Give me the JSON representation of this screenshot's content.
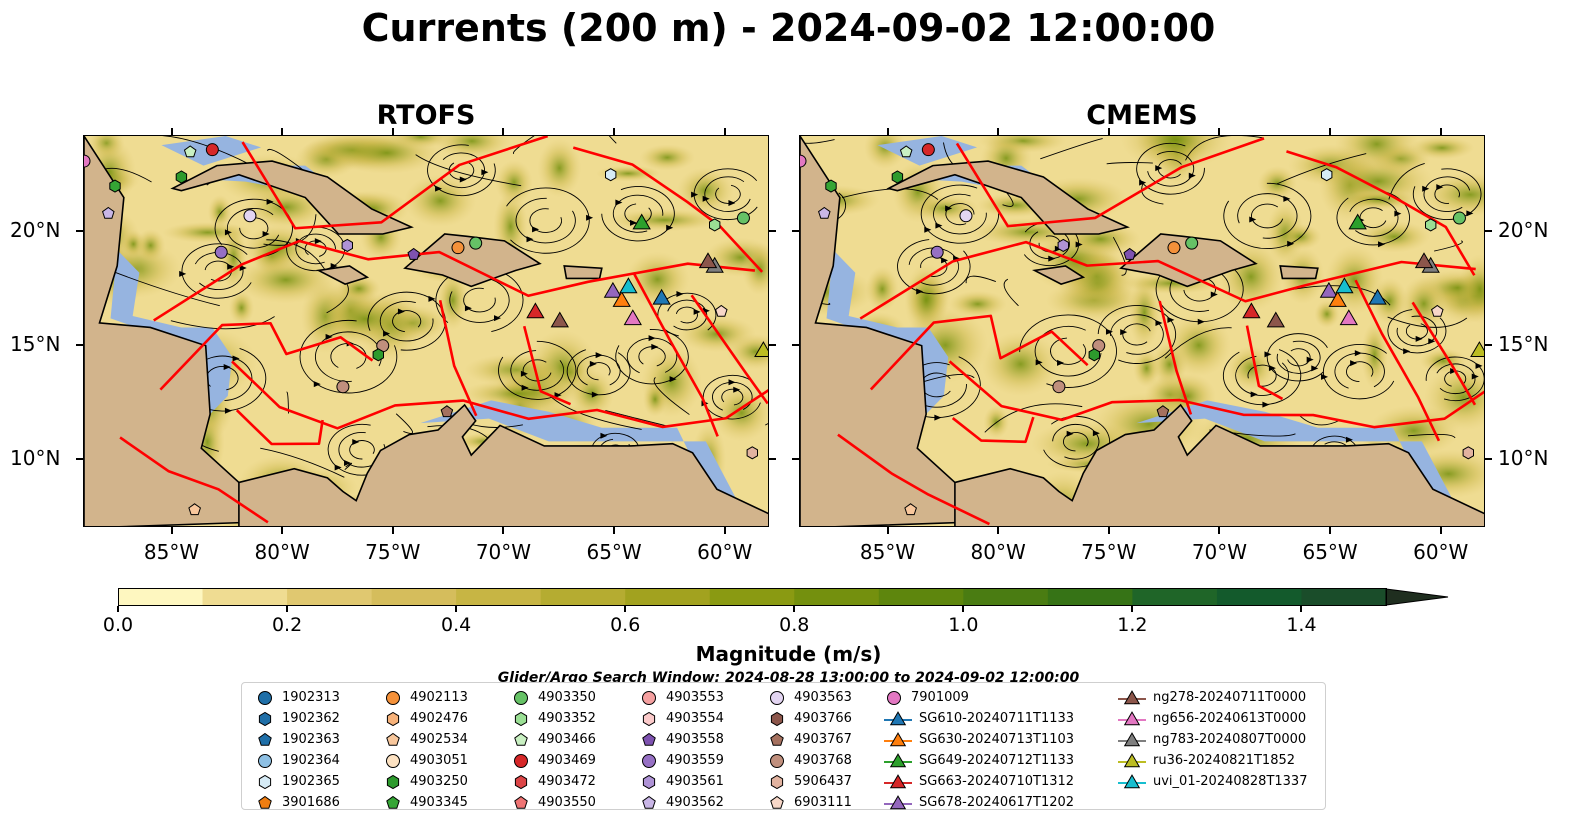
{
  "title": "Currents (200 m) - 2024-09-02 12:00:00",
  "panels": [
    {
      "title": "RTOFS"
    },
    {
      "title": "CMEMS"
    }
  ],
  "axes": {
    "lon_ticks": [
      "85°W",
      "80°W",
      "75°W",
      "70°W",
      "65°W",
      "60°W"
    ],
    "lat_ticks": [
      "20°N",
      "15°N",
      "10°N"
    ]
  },
  "colorbar": {
    "label": "Magnitude (m/s)",
    "tick_labels": [
      "0.0",
      "0.2",
      "0.4",
      "0.6",
      "0.8",
      "1.0",
      "1.2",
      "1.4"
    ],
    "min": 0.0,
    "max": 1.5,
    "extend": "max",
    "colors": [
      "#fef7c0",
      "#efdc92",
      "#e0c870",
      "#d5bd5c",
      "#c7b544",
      "#b5ac31",
      "#a2a21f",
      "#8a9a12",
      "#74900e",
      "#5e860d",
      "#4a7c12",
      "#367316",
      "#1f6528",
      "#135a2c",
      "#1a4d2a",
      "#1d3d26",
      "#1f2e1f"
    ]
  },
  "search_window": "Glider/Argo Search Window: 2024-08-28 13:00:00 to 2024-09-02 12:00:00",
  "legend": {
    "columns": [
      [
        {
          "label": "1902313",
          "marker": "circle",
          "color": "#1f6fa8"
        },
        {
          "label": "1902362",
          "marker": "hexagon",
          "color": "#1f6fa8"
        },
        {
          "label": "1902363",
          "marker": "pentagon",
          "color": "#1f6fa8"
        },
        {
          "label": "1902364",
          "marker": "circle",
          "color": "#8ec0e4"
        },
        {
          "label": "1902365",
          "marker": "hexagon",
          "color": "#d6ebf6"
        },
        {
          "label": "3901686",
          "marker": "pentagon",
          "color": "#f07d10"
        }
      ],
      [
        {
          "label": "4902113",
          "marker": "circle",
          "color": "#f4913a"
        },
        {
          "label": "4902476",
          "marker": "hexagon",
          "color": "#f7b27a"
        },
        {
          "label": "4902534",
          "marker": "pentagon",
          "color": "#f8c79c"
        },
        {
          "label": "4903051",
          "marker": "circle",
          "color": "#fde2c2"
        },
        {
          "label": "4903250",
          "marker": "hexagon",
          "color": "#2d9a2d"
        },
        {
          "label": "4903345",
          "marker": "pentagon",
          "color": "#35a535"
        }
      ],
      [
        {
          "label": "4903350",
          "marker": "circle",
          "color": "#66c266"
        },
        {
          "label": "4903352",
          "marker": "hexagon",
          "color": "#9adf94"
        },
        {
          "label": "4903466",
          "marker": "pentagon",
          "color": "#c9f0c2"
        },
        {
          "label": "4903469",
          "marker": "circle",
          "color": "#d62728"
        },
        {
          "label": "4903472",
          "marker": "hexagon",
          "color": "#dc4547"
        },
        {
          "label": "4903550",
          "marker": "pentagon",
          "color": "#ef7474"
        }
      ],
      [
        {
          "label": "4903553",
          "marker": "circle",
          "color": "#f5a0a0"
        },
        {
          "label": "4903554",
          "marker": "hexagon",
          "color": "#fbcaca"
        },
        {
          "label": "4903558",
          "marker": "pentagon",
          "color": "#7e52b0"
        },
        {
          "label": "4903559",
          "marker": "circle",
          "color": "#9670c4"
        },
        {
          "label": "4903561",
          "marker": "hexagon",
          "color": "#af93d6"
        },
        {
          "label": "4903562",
          "marker": "pentagon",
          "color": "#c9b6e6"
        }
      ],
      [
        {
          "label": "4903563",
          "marker": "circle",
          "color": "#e3d5f2"
        },
        {
          "label": "4903766",
          "marker": "hexagon",
          "color": "#8c564b"
        },
        {
          "label": "4903767",
          "marker": "pentagon",
          "color": "#a5715f"
        },
        {
          "label": "4903768",
          "marker": "circle",
          "color": "#c08f7d"
        },
        {
          "label": "5906437",
          "marker": "hexagon",
          "color": "#e2b3a0"
        },
        {
          "label": "6903111",
          "marker": "pentagon",
          "color": "#f7d7c8"
        }
      ],
      [
        {
          "label": "7901009",
          "marker": "circle",
          "color": "#e377c2"
        },
        {
          "label": "SG610-20240711T1133",
          "marker": "triangle",
          "color": "#1f77b4"
        },
        {
          "label": "SG630-20240713T1103",
          "marker": "triangle",
          "color": "#ff7f0e"
        },
        {
          "label": "SG649-20240712T1133",
          "marker": "triangle",
          "color": "#2ca02c"
        },
        {
          "label": "SG663-20240710T1312",
          "marker": "triangle",
          "color": "#d62728"
        },
        {
          "label": "SG678-20240617T1202",
          "marker": "triangle",
          "color": "#9467bd"
        }
      ],
      [
        {
          "label": "ng278-20240711T0000",
          "marker": "triangle",
          "color": "#8c564b"
        },
        {
          "label": "ng656-20240613T0000",
          "marker": "triangle",
          "color": "#e377c2"
        },
        {
          "label": "ng783-20240807T0000",
          "marker": "triangle",
          "color": "#7f7f7f"
        },
        {
          "label": "ru36-20240821T1852",
          "marker": "triangle",
          "color": "#bcbd22"
        },
        {
          "label": "uvi_01-20240828T1337",
          "marker": "triangle",
          "color": "#17becf"
        }
      ]
    ]
  },
  "map_extent": {
    "lon_min": -89,
    "lon_max": -58,
    "lat_min": 7,
    "lat_max": 24.2
  },
  "colors": {
    "land": "#d2b48c",
    "shelf": "#96b4e0",
    "boundary": "#ff0000",
    "streamline": "#000000"
  }
}
